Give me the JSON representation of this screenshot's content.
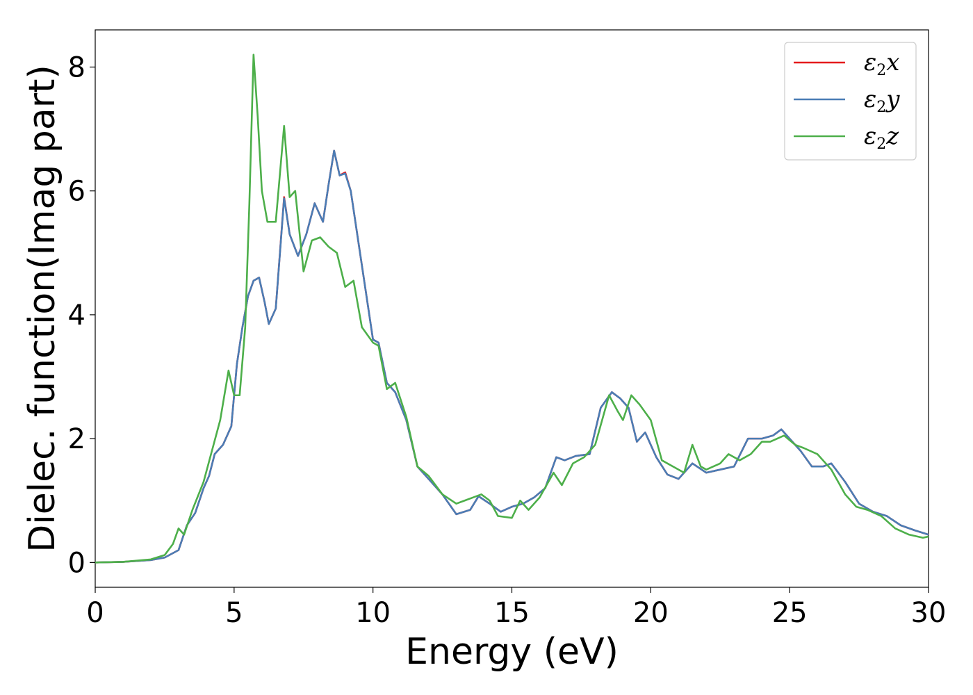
{
  "chart_data": {
    "type": "line",
    "xlabel": "Energy (eV)",
    "ylabel": "Dielec. function(Imag part)",
    "xlim": [
      0,
      30
    ],
    "ylim": [
      -0.4,
      8.6
    ],
    "xticks": [
      0,
      5,
      10,
      15,
      20,
      25,
      30
    ],
    "yticks": [
      0,
      2,
      4,
      6,
      8
    ],
    "grid": false,
    "legend_position": "top-right",
    "series": [
      {
        "name": "ε2x",
        "legend_base": "ε",
        "legend_sub": "2",
        "legend_suffix": "x",
        "color": "#e41a1c",
        "points": [
          [
            0,
            0.0
          ],
          [
            1,
            0.01
          ],
          [
            2,
            0.04
          ],
          [
            2.5,
            0.08
          ],
          [
            3,
            0.2
          ],
          [
            3.3,
            0.6
          ],
          [
            3.6,
            0.8
          ],
          [
            3.9,
            1.2
          ],
          [
            4.1,
            1.4
          ],
          [
            4.3,
            1.75
          ],
          [
            4.6,
            1.9
          ],
          [
            4.9,
            2.2
          ],
          [
            5.1,
            3.2
          ],
          [
            5.3,
            3.8
          ],
          [
            5.5,
            4.3
          ],
          [
            5.7,
            4.55
          ],
          [
            5.9,
            4.6
          ],
          [
            6.1,
            4.2
          ],
          [
            6.25,
            3.85
          ],
          [
            6.5,
            4.1
          ],
          [
            6.8,
            5.9
          ],
          [
            7.0,
            5.3
          ],
          [
            7.3,
            4.95
          ],
          [
            7.6,
            5.3
          ],
          [
            7.9,
            5.8
          ],
          [
            8.2,
            5.5
          ],
          [
            8.4,
            6.1
          ],
          [
            8.6,
            6.65
          ],
          [
            8.8,
            6.25
          ],
          [
            9.0,
            6.3
          ],
          [
            9.2,
            6.0
          ],
          [
            9.5,
            5.1
          ],
          [
            9.8,
            4.2
          ],
          [
            10.0,
            3.6
          ],
          [
            10.2,
            3.55
          ],
          [
            10.5,
            2.9
          ],
          [
            10.8,
            2.75
          ],
          [
            11.2,
            2.3
          ],
          [
            11.6,
            1.55
          ],
          [
            12.0,
            1.35
          ],
          [
            12.5,
            1.1
          ],
          [
            13.0,
            0.78
          ],
          [
            13.5,
            0.85
          ],
          [
            13.8,
            1.07
          ],
          [
            14.2,
            0.95
          ],
          [
            14.6,
            0.82
          ],
          [
            15.0,
            0.9
          ],
          [
            15.4,
            0.95
          ],
          [
            15.8,
            1.05
          ],
          [
            16.2,
            1.2
          ],
          [
            16.6,
            1.7
          ],
          [
            16.9,
            1.65
          ],
          [
            17.3,
            1.72
          ],
          [
            17.8,
            1.75
          ],
          [
            18.2,
            2.5
          ],
          [
            18.6,
            2.75
          ],
          [
            18.9,
            2.65
          ],
          [
            19.2,
            2.5
          ],
          [
            19.5,
            1.95
          ],
          [
            19.8,
            2.1
          ],
          [
            20.2,
            1.7
          ],
          [
            20.6,
            1.42
          ],
          [
            21.0,
            1.35
          ],
          [
            21.5,
            1.6
          ],
          [
            22.0,
            1.45
          ],
          [
            22.5,
            1.5
          ],
          [
            23.0,
            1.55
          ],
          [
            23.5,
            2.0
          ],
          [
            24.0,
            2.0
          ],
          [
            24.4,
            2.05
          ],
          [
            24.7,
            2.15
          ],
          [
            25.0,
            2.0
          ],
          [
            25.4,
            1.8
          ],
          [
            25.8,
            1.55
          ],
          [
            26.2,
            1.55
          ],
          [
            26.5,
            1.6
          ],
          [
            27.0,
            1.3
          ],
          [
            27.5,
            0.95
          ],
          [
            28.0,
            0.82
          ],
          [
            28.5,
            0.75
          ],
          [
            29.0,
            0.6
          ],
          [
            29.5,
            0.52
          ],
          [
            30.0,
            0.45
          ]
        ]
      },
      {
        "name": "ε2y",
        "legend_base": "ε",
        "legend_sub": "2",
        "legend_suffix": "y",
        "color": "#4a7db5",
        "points": [
          [
            0,
            0.0
          ],
          [
            1,
            0.01
          ],
          [
            2,
            0.04
          ],
          [
            2.5,
            0.08
          ],
          [
            3,
            0.2
          ],
          [
            3.3,
            0.6
          ],
          [
            3.6,
            0.8
          ],
          [
            3.9,
            1.2
          ],
          [
            4.1,
            1.4
          ],
          [
            4.3,
            1.75
          ],
          [
            4.6,
            1.9
          ],
          [
            4.9,
            2.2
          ],
          [
            5.1,
            3.2
          ],
          [
            5.3,
            3.8
          ],
          [
            5.5,
            4.3
          ],
          [
            5.7,
            4.55
          ],
          [
            5.9,
            4.6
          ],
          [
            6.1,
            4.2
          ],
          [
            6.25,
            3.85
          ],
          [
            6.5,
            4.1
          ],
          [
            6.8,
            5.88
          ],
          [
            7.0,
            5.3
          ],
          [
            7.3,
            4.95
          ],
          [
            7.6,
            5.3
          ],
          [
            7.9,
            5.8
          ],
          [
            8.2,
            5.5
          ],
          [
            8.4,
            6.1
          ],
          [
            8.6,
            6.65
          ],
          [
            8.8,
            6.25
          ],
          [
            9.0,
            6.28
          ],
          [
            9.2,
            6.0
          ],
          [
            9.5,
            5.1
          ],
          [
            9.8,
            4.2
          ],
          [
            10.0,
            3.6
          ],
          [
            10.2,
            3.55
          ],
          [
            10.5,
            2.9
          ],
          [
            10.8,
            2.75
          ],
          [
            11.2,
            2.3
          ],
          [
            11.6,
            1.55
          ],
          [
            12.0,
            1.35
          ],
          [
            12.5,
            1.1
          ],
          [
            13.0,
            0.78
          ],
          [
            13.5,
            0.85
          ],
          [
            13.8,
            1.07
          ],
          [
            14.2,
            0.95
          ],
          [
            14.6,
            0.82
          ],
          [
            15.0,
            0.9
          ],
          [
            15.4,
            0.95
          ],
          [
            15.8,
            1.05
          ],
          [
            16.2,
            1.2
          ],
          [
            16.6,
            1.7
          ],
          [
            16.9,
            1.65
          ],
          [
            17.3,
            1.72
          ],
          [
            17.8,
            1.75
          ],
          [
            18.2,
            2.5
          ],
          [
            18.6,
            2.75
          ],
          [
            18.9,
            2.65
          ],
          [
            19.2,
            2.5
          ],
          [
            19.5,
            1.95
          ],
          [
            19.8,
            2.1
          ],
          [
            20.2,
            1.7
          ],
          [
            20.6,
            1.42
          ],
          [
            21.0,
            1.35
          ],
          [
            21.5,
            1.6
          ],
          [
            22.0,
            1.45
          ],
          [
            22.5,
            1.5
          ],
          [
            23.0,
            1.55
          ],
          [
            23.5,
            2.0
          ],
          [
            24.0,
            2.0
          ],
          [
            24.4,
            2.05
          ],
          [
            24.7,
            2.15
          ],
          [
            25.0,
            2.0
          ],
          [
            25.4,
            1.8
          ],
          [
            25.8,
            1.55
          ],
          [
            26.2,
            1.55
          ],
          [
            26.5,
            1.6
          ],
          [
            27.0,
            1.3
          ],
          [
            27.5,
            0.95
          ],
          [
            28.0,
            0.82
          ],
          [
            28.5,
            0.75
          ],
          [
            29.0,
            0.6
          ],
          [
            29.5,
            0.52
          ],
          [
            30.0,
            0.45
          ]
        ]
      },
      {
        "name": "ε2z",
        "legend_base": "ε",
        "legend_sub": "2",
        "legend_suffix": "z",
        "color": "#4daf4a",
        "points": [
          [
            0,
            0.0
          ],
          [
            1,
            0.01
          ],
          [
            2,
            0.05
          ],
          [
            2.5,
            0.12
          ],
          [
            2.8,
            0.3
          ],
          [
            3.0,
            0.55
          ],
          [
            3.2,
            0.45
          ],
          [
            3.5,
            0.85
          ],
          [
            3.9,
            1.3
          ],
          [
            4.2,
            1.8
          ],
          [
            4.5,
            2.3
          ],
          [
            4.8,
            3.1
          ],
          [
            5.0,
            2.7
          ],
          [
            5.2,
            2.7
          ],
          [
            5.4,
            3.8
          ],
          [
            5.55,
            5.8
          ],
          [
            5.7,
            8.2
          ],
          [
            5.85,
            7.2
          ],
          [
            6.0,
            6.0
          ],
          [
            6.2,
            5.5
          ],
          [
            6.5,
            5.5
          ],
          [
            6.8,
            7.05
          ],
          [
            7.0,
            5.9
          ],
          [
            7.2,
            6.0
          ],
          [
            7.5,
            4.7
          ],
          [
            7.8,
            5.2
          ],
          [
            8.1,
            5.25
          ],
          [
            8.4,
            5.1
          ],
          [
            8.7,
            5.0
          ],
          [
            9.0,
            4.45
          ],
          [
            9.3,
            4.55
          ],
          [
            9.6,
            3.8
          ],
          [
            10.0,
            3.55
          ],
          [
            10.2,
            3.5
          ],
          [
            10.5,
            2.8
          ],
          [
            10.8,
            2.9
          ],
          [
            11.2,
            2.35
          ],
          [
            11.6,
            1.55
          ],
          [
            12.0,
            1.4
          ],
          [
            12.5,
            1.1
          ],
          [
            13.0,
            0.95
          ],
          [
            13.3,
            1.0
          ],
          [
            13.6,
            1.05
          ],
          [
            13.9,
            1.1
          ],
          [
            14.2,
            1.0
          ],
          [
            14.5,
            0.75
          ],
          [
            15.0,
            0.72
          ],
          [
            15.3,
            1.0
          ],
          [
            15.6,
            0.85
          ],
          [
            16.0,
            1.05
          ],
          [
            16.5,
            1.45
          ],
          [
            16.8,
            1.25
          ],
          [
            17.2,
            1.6
          ],
          [
            17.6,
            1.7
          ],
          [
            18.0,
            1.9
          ],
          [
            18.5,
            2.7
          ],
          [
            18.8,
            2.45
          ],
          [
            19.0,
            2.3
          ],
          [
            19.3,
            2.7
          ],
          [
            19.6,
            2.55
          ],
          [
            20.0,
            2.3
          ],
          [
            20.4,
            1.65
          ],
          [
            20.8,
            1.55
          ],
          [
            21.2,
            1.45
          ],
          [
            21.5,
            1.9
          ],
          [
            21.8,
            1.55
          ],
          [
            22.0,
            1.5
          ],
          [
            22.5,
            1.6
          ],
          [
            22.8,
            1.75
          ],
          [
            23.2,
            1.65
          ],
          [
            23.6,
            1.75
          ],
          [
            24.0,
            1.95
          ],
          [
            24.3,
            1.95
          ],
          [
            24.8,
            2.05
          ],
          [
            25.2,
            1.9
          ],
          [
            25.5,
            1.85
          ],
          [
            26.0,
            1.75
          ],
          [
            26.5,
            1.5
          ],
          [
            27.0,
            1.1
          ],
          [
            27.4,
            0.9
          ],
          [
            27.8,
            0.85
          ],
          [
            28.3,
            0.75
          ],
          [
            28.8,
            0.55
          ],
          [
            29.3,
            0.45
          ],
          [
            29.8,
            0.4
          ],
          [
            30.0,
            0.42
          ]
        ]
      }
    ]
  }
}
